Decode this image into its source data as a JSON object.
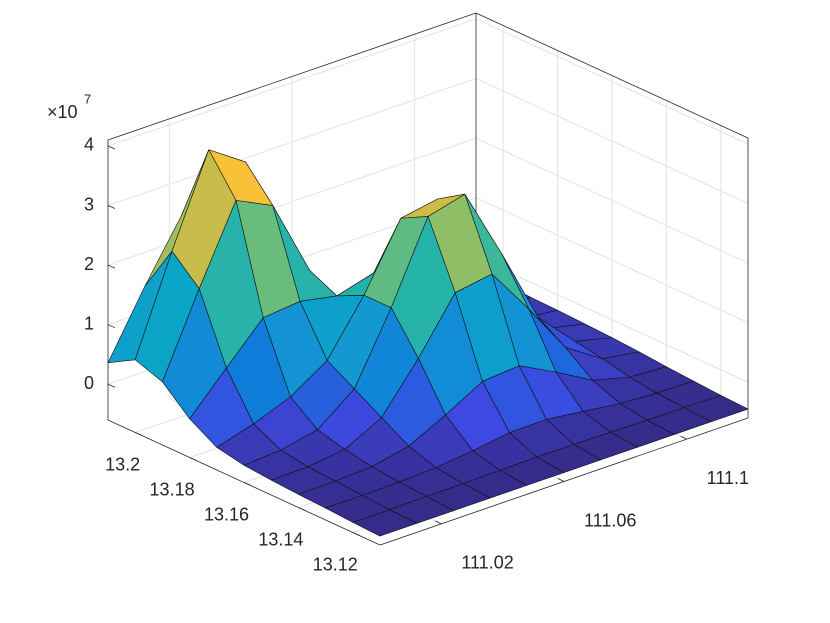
{
  "chart_data": {
    "type": "surface",
    "x": [
      111.0,
      111.012,
      111.024,
      111.036,
      111.048,
      111.06,
      111.072,
      111.084,
      111.096,
      111.108,
      111.12
    ],
    "y": [
      13.11,
      13.12,
      13.13,
      13.14,
      13.15,
      13.16,
      13.17,
      13.18,
      13.19,
      13.2,
      13.21
    ],
    "z": [
      [
        -0.45,
        -0.45,
        -0.45,
        -0.45,
        -0.45,
        -0.45,
        -0.45,
        -0.45,
        -0.45,
        -0.45,
        -0.45
      ],
      [
        -0.43,
        -0.43,
        -0.42,
        -0.42,
        -0.41,
        -0.4,
        -0.4,
        -0.41,
        -0.42,
        -0.42,
        -0.43
      ],
      [
        -0.4,
        -0.4,
        -0.39,
        -0.36,
        -0.29,
        -0.2,
        -0.19,
        -0.27,
        -0.35,
        -0.39,
        -0.4
      ],
      [
        -0.38,
        -0.37,
        -0.34,
        -0.21,
        0.1,
        0.45,
        0.5,
        0.18,
        -0.17,
        -0.33,
        -0.37
      ],
      [
        -0.35,
        -0.34,
        -0.26,
        0.06,
        0.84,
        1.73,
        1.83,
        1.03,
        0.17,
        -0.23,
        -0.33
      ],
      [
        -0.31,
        -0.27,
        -0.14,
        0.33,
        1.48,
        2.8,
        2.96,
        1.75,
        0.46,
        -0.15,
        -0.3
      ],
      [
        -0.22,
        -0.04,
        0.2,
        0.6,
        1.48,
        2.56,
        2.67,
        1.58,
        0.41,
        -0.14,
        -0.28
      ],
      [
        0.05,
        0.69,
        1.32,
        1.38,
        1.26,
        1.43,
        1.36,
        0.74,
        0.11,
        -0.19,
        -0.26
      ],
      [
        0.46,
        1.81,
        3.08,
        2.78,
        1.48,
        0.64,
        0.33,
        0.09,
        -0.12,
        -0.22,
        -0.25
      ],
      [
        0.62,
        2.23,
        3.72,
        3.3,
        1.55,
        0.34,
        -0.05,
        -0.15,
        -0.2,
        -0.22,
        -0.22
      ],
      [
        0.36,
        1.43,
        2.41,
        2.12,
        0.95,
        0.12,
        -0.14,
        -0.19,
        -0.2,
        -0.2,
        -0.2
      ]
    ],
    "xlim": [
      111.0,
      111.12
    ],
    "xticks": [
      111.02,
      111.06,
      111.1
    ],
    "ylim": [
      13.11,
      13.21
    ],
    "yticks": [
      13.12,
      13.14,
      13.16,
      13.18,
      13.2
    ],
    "zlim": [
      -0.6,
      4.1
    ],
    "zticks": [
      0,
      1,
      2,
      3,
      4
    ],
    "z_multiplier": {
      "base": "×10",
      "exponent": "7"
    },
    "grid": true,
    "colormap": [
      "#352a87",
      "#3d49e0",
      "#0f77db",
      "#1497d3",
      "#06a9c1",
      "#36b89e",
      "#8ebf66",
      "#d5bb45",
      "#fcc137",
      "#f8e01d"
    ]
  }
}
